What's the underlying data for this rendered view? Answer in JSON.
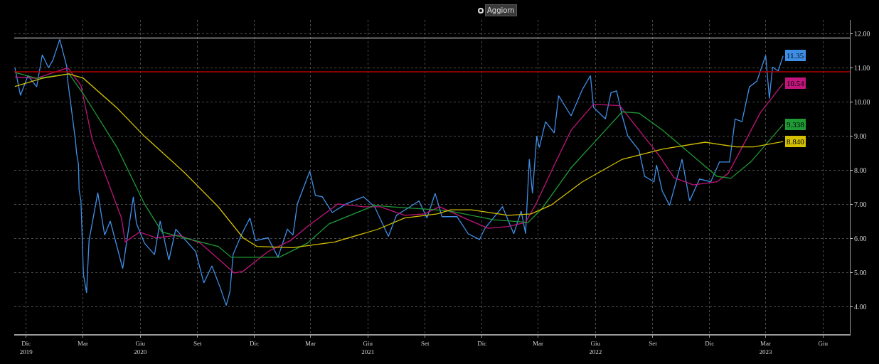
{
  "chart_data": {
    "type": "line",
    "annotations": [
      "Aggiorn"
    ],
    "xlim": [
      "2019-11-26",
      "2023-07-28"
    ],
    "xticks": [
      {
        "value": "2019-12-15",
        "label": "Dic\n2019"
      },
      {
        "value": "2020-03-15",
        "label": "Mar"
      },
      {
        "value": "2020-06-15",
        "label": "Giu\n2020"
      },
      {
        "value": "2020-09-15",
        "label": "Set"
      },
      {
        "value": "2020-12-15",
        "label": "Dic"
      },
      {
        "value": "2021-03-15",
        "label": "Mar"
      },
      {
        "value": "2021-06-15",
        "label": "Giu\n2021"
      },
      {
        "value": "2021-09-15",
        "label": "Set"
      },
      {
        "value": "2021-12-15",
        "label": "Dic"
      },
      {
        "value": "2022-03-15",
        "label": "Mar"
      },
      {
        "value": "2022-06-15",
        "label": "Giu\n2022"
      },
      {
        "value": "2022-09-15",
        "label": "Set"
      },
      {
        "value": "2022-12-15",
        "label": "Dic"
      },
      {
        "value": "2023-03-15",
        "label": "Mar\n2023"
      },
      {
        "value": "2023-06-15",
        "label": "Giu"
      }
    ],
    "ylim": [
      3.2,
      12.4
    ],
    "yticks": [
      {
        "value": 4,
        "label": "4.00"
      },
      {
        "value": 5,
        "label": "5.00"
      },
      {
        "value": 6,
        "label": "6.00"
      },
      {
        "value": 7,
        "label": "7.00"
      },
      {
        "value": 8,
        "label": "8.00"
      },
      {
        "value": 9,
        "label": "9.00"
      },
      {
        "value": 10,
        "label": "10.00"
      },
      {
        "value": 11,
        "label": "11.00"
      },
      {
        "value": 12,
        "label": "12.00"
      }
    ],
    "grid": true,
    "marker": "none",
    "line_style": "solid",
    "ref_lines": [
      {
        "axis": "y",
        "value": 11.87,
        "color": "#9a9a9a"
      },
      {
        "axis": "y",
        "value": 10.88,
        "color": "#b00000"
      }
    ],
    "series": [
      {
        "color": "#3f8ee6",
        "x": [
          "2019-11-27",
          "2019-12-06",
          "2019-12-18",
          "2020-01-01",
          "2020-01-10",
          "2020-01-20",
          "2020-01-27",
          "2020-02-07",
          "2020-02-18",
          "2020-02-20",
          "2020-03-03",
          "2020-03-05",
          "2020-03-08",
          "2020-03-09",
          "2020-03-12",
          "2020-03-16",
          "2020-03-21",
          "2020-03-25",
          "2020-04-08",
          "2020-04-19",
          "2020-04-28",
          "2020-05-18",
          "2020-05-24",
          "2020-06-04",
          "2020-06-09",
          "2020-06-22",
          "2020-07-08",
          "2020-07-17",
          "2020-07-31",
          "2020-08-11",
          "2020-09-12",
          "2020-09-25",
          "2020-10-08",
          "2020-10-22",
          "2020-10-31",
          "2020-11-06",
          "2020-11-11",
          "2020-11-24",
          "2020-12-08",
          "2020-12-17",
          "2021-01-06",
          "2021-01-22",
          "2021-02-06",
          "2021-02-15",
          "2021-02-22",
          "2021-03-14",
          "2021-03-23",
          "2021-04-03",
          "2021-04-19",
          "2021-05-11",
          "2021-06-08",
          "2021-06-26",
          "2021-07-18",
          "2021-07-31",
          "2021-08-22",
          "2021-09-05",
          "2021-09-18",
          "2021-10-01",
          "2021-10-12",
          "2021-11-05",
          "2021-11-23",
          "2021-12-11",
          "2021-12-20",
          "2022-01-17",
          "2022-02-04",
          "2022-02-16",
          "2022-02-23",
          "2022-03-01",
          "2022-03-06",
          "2022-03-13",
          "2022-03-17",
          "2022-03-27",
          "2022-04-10",
          "2022-04-17",
          "2022-05-07",
          "2022-05-25",
          "2022-06-07",
          "2022-06-12",
          "2022-07-01",
          "2022-07-10",
          "2022-07-19",
          "2022-07-28",
          "2022-08-06",
          "2022-08-24",
          "2022-09-02",
          "2022-09-17",
          "2022-09-21",
          "2022-09-30",
          "2022-10-12",
          "2022-11-01",
          "2022-11-13",
          "2022-11-29",
          "2022-12-17",
          "2022-12-31",
          "2023-01-16",
          "2023-01-18",
          "2023-01-25",
          "2023-02-05",
          "2023-02-17",
          "2023-03-01",
          "2023-03-15",
          "2023-03-21",
          "2023-03-26",
          "2023-04-04",
          "2023-04-12"
        ],
        "values": [
          11.01,
          10.19,
          10.77,
          10.44,
          11.38,
          11.0,
          11.22,
          11.83,
          11.05,
          10.6,
          8.9,
          8.5,
          8.17,
          7.43,
          7.1,
          4.95,
          4.41,
          5.94,
          7.34,
          6.1,
          6.51,
          5.12,
          5.86,
          7.22,
          6.44,
          5.86,
          5.53,
          6.51,
          5.37,
          6.27,
          5.62,
          4.7,
          5.2,
          4.53,
          4.04,
          4.45,
          5.53,
          6.1,
          6.6,
          5.94,
          6.02,
          5.45,
          6.27,
          6.1,
          7.01,
          7.97,
          7.26,
          7.22,
          6.76,
          7.01,
          7.22,
          6.93,
          6.06,
          6.68,
          6.93,
          7.1,
          6.6,
          7.32,
          6.64,
          6.64,
          6.14,
          5.97,
          6.3,
          6.93,
          6.14,
          6.8,
          6.14,
          8.32,
          7.32,
          9.0,
          8.66,
          9.42,
          9.09,
          10.18,
          9.59,
          10.36,
          10.77,
          9.84,
          9.5,
          10.27,
          10.32,
          9.59,
          9.0,
          8.58,
          7.82,
          7.66,
          8.15,
          7.4,
          6.97,
          8.32,
          7.1,
          7.74,
          7.66,
          8.24,
          8.24,
          8.49,
          9.5,
          9.42,
          10.44,
          10.61,
          11.36,
          10.1,
          11.02,
          10.9,
          11.35
        ],
        "value_labels": [
          null,
          null,
          null,
          null,
          null,
          null,
          null,
          null,
          null,
          null,
          null,
          null,
          null,
          null,
          null,
          null,
          null,
          null,
          null,
          null,
          null,
          null,
          null,
          null,
          null,
          null,
          null,
          null,
          null,
          null,
          null,
          null,
          null,
          null,
          null,
          null,
          null,
          null,
          null,
          null,
          null,
          null,
          null,
          null,
          null,
          null,
          null,
          null,
          null,
          null,
          null,
          null,
          null,
          null,
          null,
          null,
          null,
          null,
          null,
          null,
          null,
          null,
          null,
          null,
          null,
          null,
          null,
          null,
          null,
          null,
          null,
          null,
          null,
          null,
          null,
          null,
          null,
          null,
          null,
          null,
          null,
          null,
          null,
          null,
          null,
          null,
          null,
          null,
          null,
          null,
          null,
          null,
          null,
          null,
          null,
          null,
          null,
          null,
          null,
          null,
          null,
          null,
          null,
          null,
          "11.35"
        ]
      },
      {
        "color": "#c0157a",
        "x": [
          "2019-11-27",
          "2020-01-01",
          "2020-02-20",
          "2020-03-12",
          "2020-03-30",
          "2020-05-16",
          "2020-05-22",
          "2020-06-14",
          "2020-07-11",
          "2020-08-16",
          "2020-09-20",
          "2020-10-26",
          "2020-11-13",
          "2020-11-27",
          "2021-01-06",
          "2021-02-11",
          "2021-03-10",
          "2021-04-28",
          "2021-06-08",
          "2021-07-05",
          "2021-08-13",
          "2021-09-14",
          "2021-10-08",
          "2021-11-23",
          "2021-12-25",
          "2022-01-26",
          "2022-02-23",
          "2022-03-13",
          "2022-04-10",
          "2022-05-07",
          "2022-06-12",
          "2022-07-24",
          "2022-08-24",
          "2022-09-26",
          "2022-10-19",
          "2022-11-19",
          "2022-12-27",
          "2023-01-14",
          "2023-02-05",
          "2023-03-06",
          "2023-04-12"
        ],
        "values": [
          10.73,
          10.69,
          11.0,
          10.48,
          8.9,
          6.6,
          5.9,
          6.19,
          6.02,
          6.1,
          5.86,
          5.28,
          4.99,
          5.04,
          5.62,
          5.94,
          6.35,
          7.01,
          6.93,
          6.93,
          6.68,
          6.72,
          6.93,
          6.55,
          6.3,
          6.35,
          6.47,
          7.06,
          8.15,
          9.17,
          9.93,
          9.89,
          9.17,
          8.41,
          7.78,
          7.57,
          7.66,
          7.91,
          8.66,
          9.67,
          10.54
        ],
        "value_labels": [
          null,
          null,
          null,
          null,
          null,
          null,
          null,
          null,
          null,
          null,
          null,
          null,
          null,
          null,
          null,
          null,
          null,
          null,
          null,
          null,
          null,
          null,
          null,
          null,
          null,
          null,
          null,
          null,
          null,
          null,
          null,
          null,
          null,
          null,
          null,
          null,
          null,
          null,
          null,
          null,
          "10.54"
        ]
      },
      {
        "color": "#1f9a35",
        "x": [
          "2019-11-27",
          "2020-01-01",
          "2020-02-22",
          "2020-03-16",
          "2020-05-09",
          "2020-06-22",
          "2020-07-20",
          "2020-08-25",
          "2020-10-18",
          "2020-11-08",
          "2021-01-24",
          "2021-03-10",
          "2021-04-14",
          "2021-06-26",
          "2021-07-22",
          "2021-10-02",
          "2021-10-26",
          "2022-01-03",
          "2022-02-27",
          "2022-03-22",
          "2022-05-07",
          "2022-07-01",
          "2022-07-28",
          "2022-08-24",
          "2022-10-01",
          "2022-11-19",
          "2022-12-27",
          "2023-01-18",
          "2023-02-19",
          "2023-04-12"
        ],
        "values": [
          10.86,
          10.69,
          10.82,
          10.23,
          8.66,
          7.01,
          6.19,
          6.02,
          5.77,
          5.45,
          5.45,
          5.86,
          6.43,
          6.97,
          6.93,
          6.84,
          6.8,
          6.55,
          6.47,
          6.89,
          8.07,
          9.17,
          9.71,
          9.67,
          9.17,
          8.41,
          7.82,
          7.76,
          8.24,
          9.338
        ],
        "value_labels": [
          null,
          null,
          null,
          null,
          null,
          null,
          null,
          null,
          null,
          null,
          null,
          null,
          null,
          null,
          null,
          null,
          null,
          null,
          null,
          null,
          null,
          null,
          null,
          null,
          null,
          null,
          null,
          null,
          null,
          "9.338"
        ]
      },
      {
        "color": "#d4c000",
        "x": [
          "2019-11-27",
          "2020-01-10",
          "2020-02-22",
          "2020-03-16",
          "2020-05-09",
          "2020-06-22",
          "2020-08-25",
          "2020-10-18",
          "2020-11-27",
          "2020-12-19",
          "2021-02-15",
          "2021-04-23",
          "2021-07-01",
          "2021-08-13",
          "2021-10-04",
          "2021-10-26",
          "2021-11-28",
          "2022-01-26",
          "2022-03-04",
          "2022-04-05",
          "2022-05-25",
          "2022-07-28",
          "2022-10-01",
          "2022-12-08",
          "2023-01-27",
          "2023-02-24",
          "2023-04-12"
        ],
        "values": [
          10.45,
          10.69,
          10.82,
          10.69,
          9.82,
          8.99,
          7.93,
          6.93,
          6.02,
          5.77,
          5.73,
          5.9,
          6.27,
          6.6,
          6.72,
          6.84,
          6.84,
          6.68,
          6.72,
          6.98,
          7.66,
          8.32,
          8.62,
          8.82,
          8.68,
          8.68,
          8.84
        ],
        "value_labels": [
          null,
          null,
          null,
          null,
          null,
          null,
          null,
          null,
          null,
          null,
          null,
          null,
          null,
          null,
          null,
          null,
          null,
          null,
          null,
          null,
          null,
          null,
          null,
          null,
          null,
          null,
          "8.840"
        ]
      }
    ]
  }
}
